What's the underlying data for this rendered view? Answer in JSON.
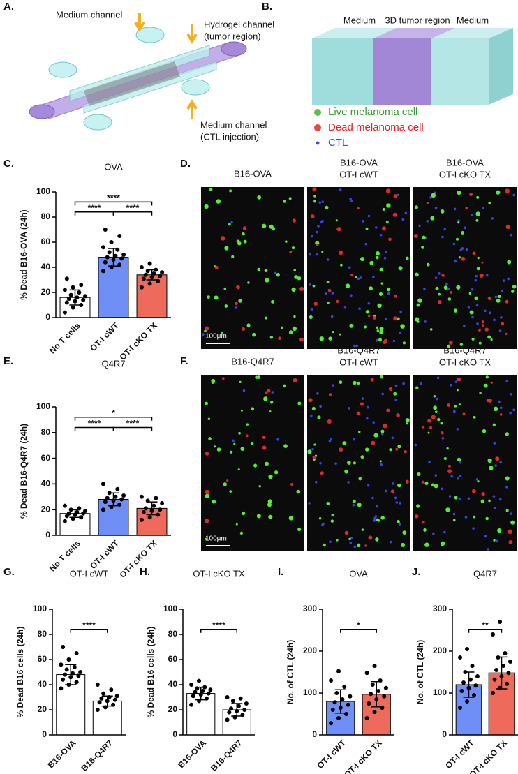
{
  "panel_a": {
    "label": "A.",
    "texts": [
      "Medium channel",
      "Hydrogel channel",
      "(tumor region)",
      "Medium channel",
      "(CTL injection)"
    ]
  },
  "panel_b": {
    "label": "B.",
    "regions": [
      "Medium",
      "3D tumor region",
      "Medium"
    ],
    "legend": [
      "Live melanoma cell",
      "Dead melanoma cell",
      "CTL"
    ]
  },
  "panel_d": {
    "label": "D.",
    "titles": [
      [
        "B16-OVA"
      ],
      [
        "B16-OVA",
        "OT-I cWT"
      ],
      [
        "B16-OVA",
        "OT-I cKO TX"
      ]
    ],
    "scale_bar": "100μm"
  },
  "panel_f": {
    "label": "F.",
    "titles": [
      [
        "B16-Q4R7"
      ],
      [
        "B16-Q4R7",
        "OT-I cWT"
      ],
      [
        "B16-Q4R7",
        "OT-I cKO TX"
      ]
    ],
    "scale_bar": "100μm"
  },
  "chart_data": [
    {
      "type": "bar",
      "label": "C.",
      "title": "OVA",
      "y_label": "% Dead B16-OVA (24h)",
      "categories": [
        "No T cells",
        "OT-I cWT",
        "OT-I cKO TX"
      ],
      "values": [
        16,
        48,
        34
      ],
      "errors": [
        6,
        7,
        4
      ],
      "colors": [
        "#ffffff",
        "#6f8ff7",
        "#ee6a5a"
      ],
      "points": [
        [
          4,
          8,
          10,
          12,
          13,
          14,
          15,
          16,
          17,
          18,
          20,
          22,
          24,
          26,
          31
        ],
        [
          37,
          40,
          42,
          44,
          46,
          47,
          48,
          49,
          50,
          52,
          54,
          56,
          60,
          65,
          70
        ],
        [
          24,
          27,
          29,
          31,
          32,
          33,
          34,
          35,
          36,
          37,
          38,
          40,
          43
        ]
      ],
      "ylim": [
        0,
        100
      ],
      "yticks": [
        0,
        20,
        40,
        60,
        80,
        100
      ],
      "brackets": [
        {
          "from": 0,
          "to": 1,
          "label": "****"
        },
        {
          "from": 1,
          "to": 2,
          "label": "****"
        },
        {
          "from": 0,
          "to": 2,
          "label": "****"
        }
      ]
    },
    {
      "type": "bar",
      "label": "E.",
      "title": "Q4R7",
      "y_label": "% Dead B16-Q4R7 (24h)",
      "categories": [
        "No T cells",
        "OT-I cWT",
        "OT-I cKO TX"
      ],
      "values": [
        17,
        28,
        21
      ],
      "errors": [
        3,
        5,
        5
      ],
      "colors": [
        "#ffffff",
        "#6f8ff7",
        "#ee6a5a"
      ],
      "points": [
        [
          11,
          13,
          14,
          15,
          16,
          17,
          17,
          18,
          19,
          20,
          21,
          23
        ],
        [
          20,
          22,
          24,
          26,
          27,
          28,
          29,
          30,
          31,
          33,
          36,
          40
        ],
        [
          12,
          14,
          16,
          18,
          19,
          20,
          21,
          23,
          25,
          27,
          29,
          30
        ]
      ],
      "ylim": [
        0,
        100
      ],
      "yticks": [
        0,
        20,
        40,
        60,
        80,
        100
      ],
      "brackets": [
        {
          "from": 0,
          "to": 1,
          "label": "****"
        },
        {
          "from": 1,
          "to": 2,
          "label": "****"
        },
        {
          "from": 0,
          "to": 2,
          "label": "*"
        }
      ]
    },
    {
      "type": "bar",
      "label": "G.",
      "title": "OT-I cWT",
      "y_label": "% Dead B16 cells (24h)",
      "categories": [
        "B16-OVA",
        "B16-Q4R7"
      ],
      "values": [
        48,
        27
      ],
      "errors": [
        8,
        4
      ],
      "colors": [
        "#ffffff",
        "#ffffff"
      ],
      "points": [
        [
          37,
          40,
          42,
          44,
          46,
          47,
          48,
          49,
          50,
          52,
          54,
          56,
          60,
          65,
          70
        ],
        [
          20,
          22,
          24,
          26,
          27,
          28,
          29,
          30,
          31,
          33,
          36,
          40
        ]
      ],
      "ylim": [
        0,
        100
      ],
      "yticks": [
        0,
        20,
        40,
        60,
        80,
        100
      ],
      "brackets": [
        {
          "from": 0,
          "to": 1,
          "label": "****"
        }
      ]
    },
    {
      "type": "bar",
      "label": "H.",
      "title": "OT-I cKO TX",
      "y_label": "% Dead B16 cells (24h)",
      "categories": [
        "B16-OVA",
        "B16-Q4R7"
      ],
      "values": [
        33,
        20
      ],
      "errors": [
        5,
        5
      ],
      "colors": [
        "#ffffff",
        "#ffffff"
      ],
      "points": [
        [
          24,
          27,
          29,
          31,
          32,
          33,
          34,
          35,
          36,
          37,
          38,
          40,
          43
        ],
        [
          12,
          14,
          16,
          18,
          19,
          20,
          21,
          23,
          25,
          27,
          29,
          30
        ]
      ],
      "ylim": [
        0,
        100
      ],
      "yticks": [
        0,
        20,
        40,
        60,
        80,
        100
      ],
      "brackets": [
        {
          "from": 0,
          "to": 1,
          "label": "****"
        }
      ]
    },
    {
      "type": "bar",
      "label": "I.",
      "title": "OVA",
      "y_label": "No. of CTL (24h)",
      "categories": [
        "OT-I cWT",
        "OT-I cKO TX"
      ],
      "values": [
        80,
        97
      ],
      "errors": [
        28,
        30
      ],
      "colors": [
        "#6f8ff7",
        "#ee6a5a"
      ],
      "points": [
        [
          28,
          40,
          50,
          60,
          65,
          72,
          78,
          85,
          92,
          100,
          115,
          130,
          152
        ],
        [
          40,
          55,
          65,
          75,
          85,
          92,
          98,
          105,
          112,
          120,
          130,
          148,
          165
        ]
      ],
      "ylim": [
        0,
        300
      ],
      "yticks": [
        0,
        100,
        200,
        300
      ],
      "brackets": [
        {
          "from": 0,
          "to": 1,
          "label": "*"
        }
      ]
    },
    {
      "type": "bar",
      "label": "J.",
      "title": "Q4R7",
      "y_label": "No. of CTL (24h)",
      "categories": [
        "OT-I cWT",
        "OT-I cKO TX"
      ],
      "values": [
        120,
        148
      ],
      "errors": [
        30,
        38
      ],
      "colors": [
        "#6f8ff7",
        "#ee6a5a"
      ],
      "points": [
        [
          65,
          80,
          95,
          105,
          112,
          118,
          125,
          132,
          140,
          150,
          165,
          185,
          205
        ],
        [
          100,
          112,
          122,
          132,
          140,
          148,
          155,
          165,
          175,
          185,
          195,
          240,
          270
        ]
      ],
      "ylim": [
        0,
        300
      ],
      "yticks": [
        0,
        100,
        200,
        300
      ],
      "brackets": [
        {
          "from": 0,
          "to": 1,
          "label": "**"
        }
      ]
    }
  ]
}
